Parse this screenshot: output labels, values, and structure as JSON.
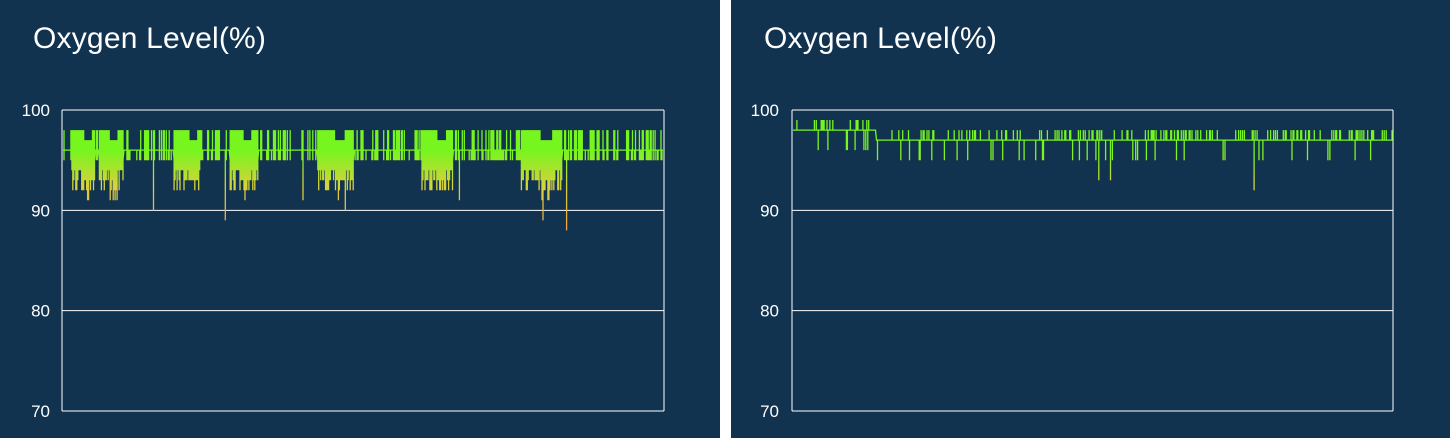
{
  "colors": {
    "background": "#11334f",
    "grid": "#ffffff",
    "line_high": "#76f51e",
    "line_low": "#f5a043",
    "text": "#ffffff"
  },
  "panels": [
    {
      "title": "Oxygen Level(%)"
    },
    {
      "title": "Oxygen Level(%)"
    }
  ],
  "chart_data": [
    {
      "type": "line",
      "title": "Oxygen Level(%)",
      "xlabel": "",
      "ylabel": "",
      "ylim": [
        70,
        100
      ],
      "yticks": [
        100,
        90,
        80,
        70
      ],
      "grid": "horizontal",
      "samples": 600,
      "baseline": [
        96,
        96,
        96,
        96,
        96,
        96,
        96,
        96,
        96,
        95,
        95,
        95,
        95,
        95,
        95,
        95,
        95,
        95,
        95,
        95,
        95,
        95,
        94,
        94,
        94,
        94,
        94,
        94,
        94,
        94,
        95,
        95,
        95,
        96,
        96,
        96,
        96,
        95,
        95,
        95,
        95,
        95,
        95,
        95,
        95,
        95,
        95,
        95,
        94,
        94,
        94,
        94,
        94,
        94,
        94,
        94,
        95,
        95,
        95,
        95,
        95,
        95,
        96,
        96,
        96,
        96,
        96,
        96,
        96,
        96,
        96,
        96,
        96,
        96,
        96,
        96,
        96,
        96,
        96,
        96,
        96,
        96,
        96,
        96,
        96,
        96,
        96,
        96,
        96,
        96,
        96,
        96,
        96,
        96,
        96,
        96,
        96,
        96,
        96,
        96,
        96,
        96,
        96,
        96,
        96,
        96,
        96,
        96,
        96,
        96,
        96,
        96,
        96,
        95,
        95,
        95,
        95,
        95,
        95,
        95,
        95,
        95,
        95,
        95,
        95,
        95,
        95,
        95,
        95,
        94,
        94,
        94,
        94,
        94,
        94,
        94,
        94,
        95,
        95,
        95,
        96,
        96,
        96,
        96,
        96,
        96,
        96,
        96,
        96,
        96,
        96,
        96,
        96,
        96,
        96,
        96,
        96,
        96,
        96,
        96,
        96,
        96,
        96,
        96,
        96,
        96,
        96,
        96,
        96,
        96,
        95,
        95,
        95,
        95,
        95,
        95,
        95,
        95,
        95,
        95,
        95,
        95,
        95,
        95,
        94,
        94,
        94,
        94,
        94,
        94,
        94,
        94,
        95,
        95,
        95,
        95,
        95,
        95,
        95,
        96,
        96,
        96,
        96,
        96,
        96,
        96,
        96,
        96,
        96,
        96,
        96,
        96,
        96,
        96,
        96,
        96,
        96,
        96,
        96,
        96,
        96,
        96,
        96,
        96,
        96,
        96,
        96,
        96,
        96,
        96,
        96,
        96,
        96,
        96,
        96,
        96,
        96,
        96,
        96,
        96,
        96,
        96,
        96,
        96,
        96,
        96,
        96,
        96,
        96,
        96,
        96,
        96,
        96,
        96,
        96,
        96,
        96,
        96,
        96,
        95,
        95,
        95,
        95,
        95,
        95,
        95,
        95,
        95,
        95,
        95,
        95,
        95,
        95,
        95,
        95,
        95,
        95,
        94,
        94,
        94,
        94,
        94,
        94,
        94,
        94,
        94,
        94,
        95,
        95,
        95,
        95,
        95,
        95,
        95,
        95,
        95,
        96,
        96,
        96,
        96,
        96,
        96,
        96,
        96,
        96,
        96,
        96,
        96,
        96,
        96,
        96,
        96,
        96,
        96,
        96,
        96,
        96,
        96,
        96,
        96,
        96,
        96,
        96,
        96,
        96,
        96,
        96,
        96,
        96,
        96,
        96,
        96,
        96,
        96,
        96,
        96,
        96,
        96,
        96,
        96,
        96,
        96,
        96,
        96,
        96,
        96,
        96,
        96,
        96,
        96,
        96,
        96,
        96,
        96,
        96,
        96,
        96,
        96,
        96,
        96,
        96,
        96,
        96,
        96,
        96,
        95,
        95,
        95,
        95,
        95,
        95,
        95,
        95,
        95,
        95,
        95,
        95,
        95,
        95,
        95,
        95,
        94,
        94,
        94,
        94,
        94,
        94,
        94,
        94,
        94,
        95,
        95,
        95,
        95,
        95,
        95,
        95,
        96,
        96,
        96,
        96,
        96,
        96,
        96,
        96,
        96,
        96,
        96,
        96,
        96,
        96,
        96,
        96,
        96,
        96,
        96,
        96,
        96,
        96,
        96,
        96,
        96,
        96,
        96,
        96,
        96,
        96,
        96,
        96,
        96,
        96,
        96,
        96,
        96,
        96,
        96,
        96,
        96,
        96,
        96,
        96,
        96,
        96,
        96,
        96,
        96,
        96,
        96,
        96,
        96,
        96,
        96,
        96,
        96,
        96,
        96,
        96,
        96,
        96,
        96,
        96,
        96,
        96,
        96,
        96,
        96,
        95,
        95,
        95,
        95,
        95,
        95,
        95,
        95,
        95,
        95,
        95,
        95,
        95,
        95,
        95,
        95,
        95,
        95,
        95,
        95,
        94,
        94,
        94,
        94,
        94,
        94,
        94,
        94,
        94,
        94,
        94,
        94,
        95,
        95,
        95,
        95,
        95,
        95,
        95,
        95,
        95,
        95,
        96,
        96,
        96,
        96,
        96,
        96,
        96,
        96,
        96,
        96,
        96,
        96,
        96,
        96,
        96,
        96,
        96,
        96,
        96,
        96,
        96,
        96,
        96,
        96,
        96,
        96,
        96,
        96,
        96,
        96,
        96,
        96,
        96,
        96,
        96,
        96,
        96,
        96,
        96,
        96,
        96,
        96,
        96,
        96,
        96,
        96,
        96,
        96,
        96,
        96,
        96,
        96,
        96,
        96,
        96,
        96,
        96,
        96,
        96,
        96,
        96,
        96,
        96,
        96,
        96,
        96,
        96,
        96,
        96,
        96,
        96,
        96,
        96,
        96,
        96,
        96,
        96,
        96,
        96,
        96,
        96,
        96,
        96,
        96,
        96,
        96,
        96,
        96,
        96,
        96,
        96,
        96,
        96,
        96,
        96,
        96,
        96,
        96,
        96,
        96,
        96,
        96,
        96
      ],
      "noise": "dense-vertical-excursions",
      "dips": [
        {
          "x": 0.15,
          "min": 90
        },
        {
          "x": 0.27,
          "min": 89
        },
        {
          "x": 0.4,
          "min": 91
        },
        {
          "x": 0.47,
          "min": 90
        },
        {
          "x": 0.66,
          "min": 91
        },
        {
          "x": 0.8,
          "min": 89
        },
        {
          "x": 0.84,
          "min": 88
        }
      ]
    },
    {
      "type": "line",
      "title": "Oxygen Level(%)",
      "xlabel": "",
      "ylabel": "",
      "ylim": [
        70,
        100
      ],
      "yticks": [
        100,
        90,
        80,
        70
      ],
      "grid": "horizontal",
      "samples": 600,
      "baseline": [
        98,
        98,
        98,
        98,
        98,
        98,
        98,
        98,
        98,
        98,
        98,
        98,
        98,
        98,
        98,
        98,
        98,
        98,
        98,
        98,
        98,
        98,
        98,
        98,
        98,
        98,
        98,
        98,
        98,
        98,
        98,
        98,
        98,
        98,
        98,
        98,
        98,
        98,
        98,
        98,
        98,
        98,
        98,
        98,
        98,
        98,
        98,
        98,
        98,
        98,
        98,
        98,
        98,
        98,
        98,
        98,
        98,
        98,
        98,
        98,
        98,
        98,
        98,
        98,
        98,
        98,
        98,
        98,
        98,
        98,
        98,
        98,
        98,
        98,
        98,
        98,
        98,
        98,
        98,
        98,
        98,
        98,
        98,
        98,
        98,
        98,
        97,
        97,
        97,
        97,
        97,
        97,
        97,
        97,
        97,
        97,
        97,
        97,
        97,
        97,
        97,
        97,
        97,
        97,
        97,
        97,
        97,
        97,
        97,
        97,
        97,
        97,
        97,
        97,
        97,
        97,
        97,
        97,
        97,
        97,
        97,
        97,
        97,
        97,
        97,
        97,
        97,
        97,
        97,
        97,
        97,
        97,
        97,
        97,
        97,
        97,
        97,
        97,
        97,
        97,
        97,
        97,
        97,
        97,
        97,
        97,
        97,
        97,
        97,
        97,
        97,
        97,
        97,
        97,
        97,
        97,
        97,
        97,
        97,
        97,
        97,
        97,
        97,
        97,
        97,
        97,
        97,
        97,
        97,
        97,
        97,
        97,
        97,
        97,
        97,
        97,
        97,
        97,
        97,
        97,
        97,
        97,
        97,
        97,
        97,
        97,
        97,
        97,
        97,
        97,
        97,
        97,
        97,
        97,
        97,
        97,
        97,
        97,
        97,
        97,
        97,
        97,
        97,
        97,
        97,
        97,
        97,
        97,
        97,
        97,
        97,
        97,
        97,
        97,
        97,
        97,
        97,
        97,
        97,
        97,
        97,
        97,
        97,
        97,
        97,
        97,
        97,
        97,
        97,
        97,
        97,
        97,
        97,
        97,
        97,
        97,
        97,
        97,
        97,
        97,
        97,
        97,
        97,
        97,
        97,
        97,
        97,
        97,
        97,
        97,
        97,
        97,
        97,
        97,
        97,
        97,
        97,
        97,
        97,
        97,
        97,
        97,
        97,
        97,
        97,
        97,
        97,
        97,
        97,
        97,
        97,
        97,
        97,
        97,
        97,
        97,
        97,
        97,
        97,
        97,
        97,
        97,
        97,
        97,
        97,
        97,
        97,
        97,
        97,
        97,
        97,
        97,
        97,
        97,
        97,
        97,
        97,
        97,
        97,
        97,
        97,
        97,
        97,
        97,
        97,
        97,
        97,
        97,
        97,
        97,
        97,
        97,
        97,
        97,
        97,
        97,
        97,
        97,
        97,
        97,
        97,
        97,
        97,
        97,
        97,
        97,
        97,
        97,
        97,
        97,
        97,
        97,
        97,
        97,
        97,
        97,
        97,
        97,
        97,
        97,
        97,
        97,
        97,
        97,
        97,
        97,
        97,
        97,
        97,
        97,
        97,
        97,
        97,
        97,
        97,
        97,
        97,
        97,
        97,
        97,
        97,
        97,
        97,
        97,
        97,
        97,
        97,
        97,
        97,
        97,
        97,
        97,
        97,
        97,
        97,
        97,
        97,
        97,
        97,
        97,
        97,
        97,
        97,
        97,
        97,
        97,
        97,
        97,
        97,
        97,
        97,
        97,
        97,
        97,
        97,
        97,
        97,
        97,
        97,
        97,
        97,
        97,
        97,
        97,
        97,
        97,
        97,
        97,
        97,
        97,
        97,
        97,
        97,
        97,
        97,
        97,
        97,
        97,
        97,
        97,
        97,
        97,
        97,
        97,
        97,
        97,
        97,
        97,
        97,
        97,
        97,
        97,
        97,
        97,
        97,
        97,
        97,
        97,
        97,
        97,
        97,
        97,
        97,
        97,
        97,
        97,
        97,
        97,
        97,
        97,
        97,
        97,
        97,
        97,
        97,
        97,
        97,
        97,
        97,
        97,
        97,
        97,
        97,
        97,
        97,
        97,
        97,
        97,
        97,
        97,
        97,
        97,
        97,
        97,
        97,
        97,
        97,
        97,
        97,
        97,
        97,
        97,
        97,
        97,
        97,
        97,
        97,
        97,
        97,
        97,
        97,
        97,
        97,
        97,
        97,
        97,
        97,
        97,
        97,
        97,
        97,
        97,
        97,
        97,
        97,
        97,
        97,
        97,
        97,
        97,
        97,
        97,
        97,
        97,
        97,
        97,
        97,
        97,
        97,
        97,
        97,
        97,
        97,
        97,
        97,
        97,
        97,
        97,
        97,
        97,
        97,
        97,
        97,
        97,
        97,
        97,
        97,
        97,
        97,
        97,
        97,
        97,
        97,
        97,
        97,
        97,
        97,
        97,
        97,
        97,
        97,
        97,
        97,
        97,
        97,
        97,
        97,
        97,
        97,
        97,
        97,
        97,
        97,
        97,
        97,
        97,
        97,
        97,
        97,
        97,
        97,
        97,
        97,
        97,
        97,
        97,
        97,
        97,
        97,
        97,
        97,
        97,
        97,
        97,
        97,
        97,
        97,
        97,
        97,
        97,
        97,
        97,
        97,
        97,
        97,
        97,
        97,
        97,
        97,
        97,
        97,
        97,
        97,
        97,
        97,
        97,
        97,
        97,
        97,
        97,
        97,
        97,
        97,
        97,
        97,
        97,
        97,
        97
      ],
      "noise": "sparse-vertical-excursions",
      "dips": [
        {
          "x": 0.51,
          "min": 93
        },
        {
          "x": 0.53,
          "min": 93
        },
        {
          "x": 0.77,
          "min": 92
        }
      ]
    }
  ]
}
